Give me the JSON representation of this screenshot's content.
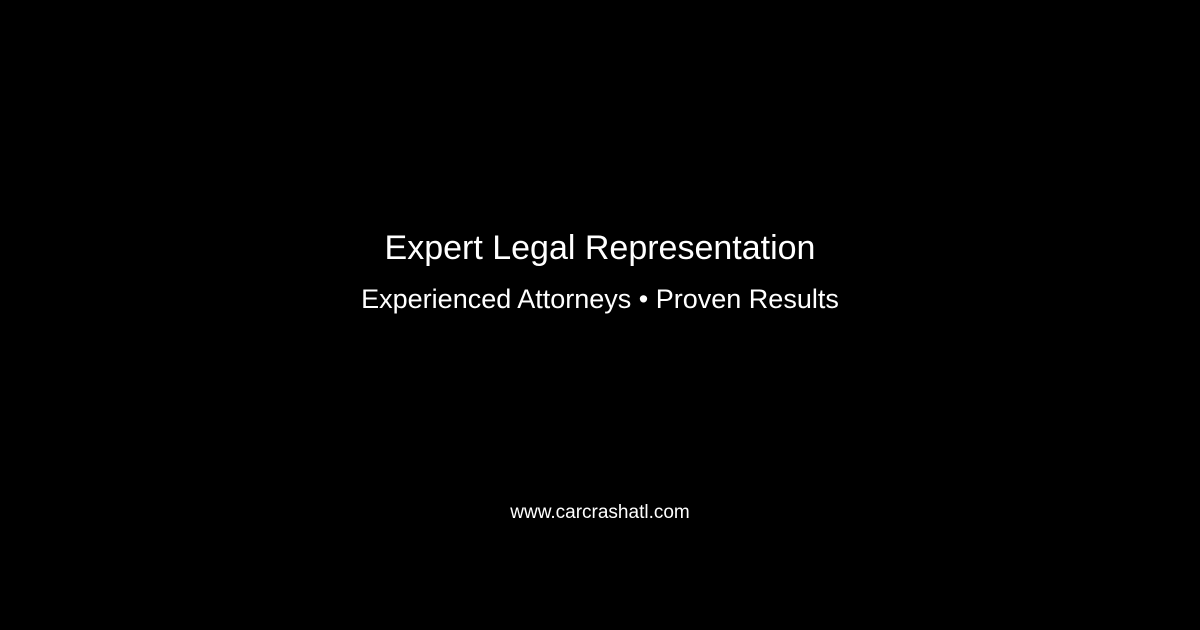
{
  "card": {
    "headline": "Expert Legal Representation",
    "tagline": "Experienced Attorneys • Proven Results",
    "website": "www.carcrashatl.com"
  },
  "colors": {
    "background": "#000000",
    "text": "#ffffff"
  }
}
